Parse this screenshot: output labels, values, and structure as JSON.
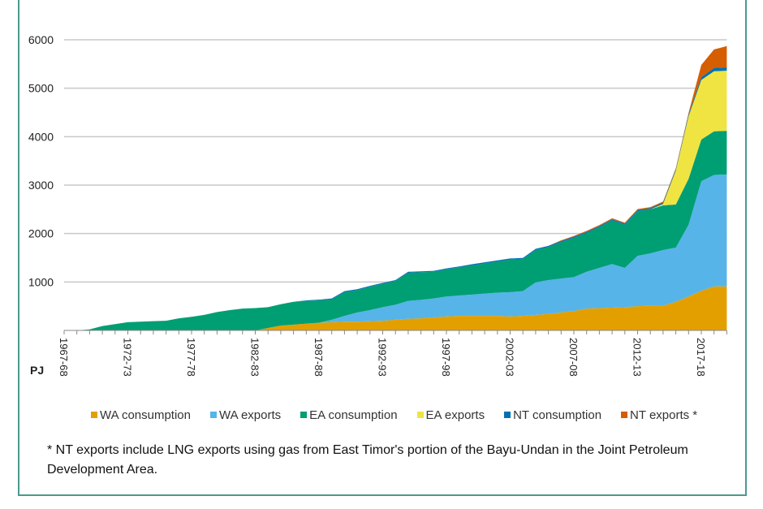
{
  "chart_data": {
    "type": "area",
    "stacked": true,
    "title": "",
    "xlabel": "",
    "ylabel": "PJ",
    "ylim": [
      0,
      6000
    ],
    "yticks": [
      1000,
      2000,
      3000,
      4000,
      5000,
      6000
    ],
    "grid": true,
    "legend": "bottom",
    "x": [
      "1967-68",
      "1968-69",
      "1969-70",
      "1970-71",
      "1971-72",
      "1972-73",
      "1973-74",
      "1974-75",
      "1975-76",
      "1976-77",
      "1977-78",
      "1978-79",
      "1979-80",
      "1980-81",
      "1981-82",
      "1982-83",
      "1983-84",
      "1984-85",
      "1985-86",
      "1986-87",
      "1987-88",
      "1988-89",
      "1989-90",
      "1990-91",
      "1991-92",
      "1992-93",
      "1993-94",
      "1994-95",
      "1995-96",
      "1996-97",
      "1997-98",
      "1998-99",
      "1999-00",
      "2000-01",
      "2001-02",
      "2002-03",
      "2003-04",
      "2004-05",
      "2005-06",
      "2006-07",
      "2007-08",
      "2008-09",
      "2009-10",
      "2010-11",
      "2011-12",
      "2012-13",
      "2013-14",
      "2014-15",
      "2015-16",
      "2016-17",
      "2017-18",
      "2018-19",
      "2019-20"
    ],
    "xtick_labels": [
      "1967-68",
      "1972-73",
      "1977-78",
      "1982-83",
      "1987-88",
      "1992-93",
      "1997-98",
      "2002-03",
      "2007-08",
      "2012-13",
      "2017-18"
    ],
    "series": [
      {
        "name": "WA consumption",
        "color": "#e39f00",
        "values": [
          0,
          0,
          0,
          0,
          0,
          0,
          0,
          0,
          0,
          0,
          0,
          0,
          0,
          0,
          0,
          0,
          50,
          100,
          120,
          140,
          160,
          170,
          180,
          180,
          190,
          200,
          220,
          240,
          250,
          270,
          290,
          300,
          300,
          300,
          300,
          290,
          300,
          320,
          340,
          370,
          400,
          450,
          460,
          470,
          480,
          500,
          510,
          510,
          590,
          700,
          820,
          910,
          910
        ]
      },
      {
        "name": "WA exports",
        "color": "#56b4e9",
        "values": [
          0,
          0,
          0,
          0,
          0,
          0,
          0,
          0,
          0,
          0,
          0,
          0,
          0,
          0,
          0,
          0,
          0,
          0,
          0,
          0,
          0,
          50,
          120,
          190,
          230,
          280,
          310,
          370,
          380,
          390,
          410,
          420,
          440,
          460,
          480,
          500,
          510,
          670,
          700,
          700,
          700,
          760,
          830,
          900,
          810,
          1040,
          1080,
          1150,
          1120,
          1480,
          2260,
          2300,
          2310
        ]
      },
      {
        "name": "EA consumption",
        "color": "#009e73",
        "values": [
          0,
          0,
          20,
          90,
          130,
          170,
          180,
          190,
          200,
          250,
          280,
          320,
          380,
          420,
          450,
          460,
          430,
          440,
          470,
          470,
          460,
          420,
          490,
          460,
          480,
          480,
          490,
          580,
          570,
          550,
          560,
          580,
          600,
          620,
          640,
          670,
          660,
          670,
          680,
          750,
          810,
          800,
          840,
          900,
          890,
          920,
          910,
          920,
          890,
          950,
          860,
          900,
          900
        ]
      },
      {
        "name": "EA exports",
        "color": "#f0e442",
        "values": [
          0,
          0,
          0,
          0,
          0,
          0,
          0,
          0,
          0,
          0,
          0,
          0,
          0,
          0,
          0,
          0,
          0,
          0,
          0,
          0,
          0,
          0,
          0,
          0,
          0,
          0,
          0,
          0,
          0,
          0,
          0,
          0,
          0,
          0,
          0,
          0,
          0,
          0,
          0,
          0,
          0,
          0,
          0,
          0,
          0,
          0,
          0,
          30,
          700,
          1290,
          1230,
          1240,
          1240
        ]
      },
      {
        "name": "NT consumption",
        "color": "#0072b2",
        "values": [
          0,
          0,
          0,
          0,
          0,
          0,
          0,
          0,
          0,
          0,
          0,
          0,
          0,
          0,
          0,
          0,
          0,
          0,
          0,
          10,
          15,
          20,
          20,
          20,
          20,
          20,
          20,
          20,
          20,
          20,
          20,
          20,
          25,
          25,
          25,
          25,
          25,
          25,
          25,
          25,
          25,
          25,
          25,
          25,
          25,
          25,
          25,
          30,
          30,
          40,
          60,
          70,
          70
        ]
      },
      {
        "name": "NT exports *",
        "color": "#d55e00",
        "values": [
          0,
          0,
          0,
          0,
          0,
          0,
          0,
          0,
          0,
          0,
          0,
          0,
          0,
          0,
          0,
          0,
          0,
          0,
          0,
          0,
          0,
          0,
          0,
          0,
          0,
          0,
          0,
          0,
          0,
          0,
          0,
          0,
          0,
          0,
          0,
          0,
          0,
          0,
          0,
          15,
          15,
          20,
          20,
          20,
          20,
          20,
          20,
          20,
          20,
          30,
          250,
          380,
          440
        ]
      }
    ]
  },
  "legend": [
    "WA consumption",
    "WA exports",
    "EA consumption",
    "EA exports",
    "NT consumption",
    "NT exports *"
  ],
  "unit_label": "PJ",
  "footnote": "* NT exports include LNG exports using gas from East Timor's portion of the Bayu-Undan in the Joint Petroleum Development Area."
}
